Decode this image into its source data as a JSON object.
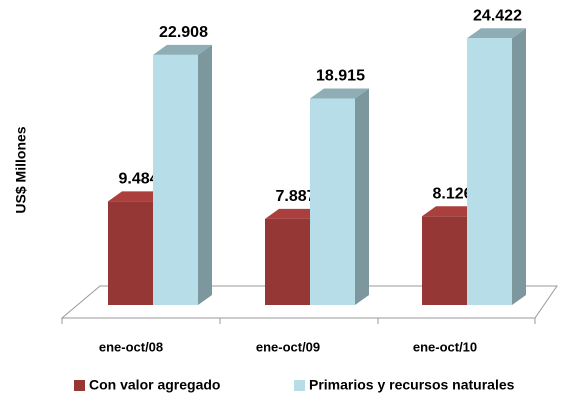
{
  "chart_data": {
    "type": "bar3d",
    "y_label": "US$ Millones",
    "categories": [
      "ene-oct/08",
      "ene-oct/09",
      "ene-oct/10"
    ],
    "series": [
      {
        "name": "Con valor agregado",
        "color": "#953735",
        "values": [
          9484,
          7887,
          8126
        ],
        "value_labels": [
          "9.484",
          "7.887",
          "8.126"
        ]
      },
      {
        "name": "Primarios y recursos naturales",
        "color": "#b7dee8",
        "values": [
          22908,
          18915,
          24422
        ],
        "value_labels": [
          "22.908",
          "18.915",
          "24.422"
        ]
      }
    ],
    "ylim": [
      0,
      25000
    ]
  }
}
